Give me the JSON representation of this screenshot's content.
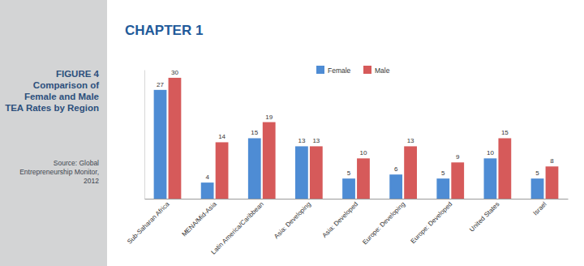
{
  "header": {
    "chapter": "CHAPTER 1",
    "figure": "FIGURE 4",
    "source": [
      "Source: Global",
      "Entrepreneurship Monitor, 2012"
    ]
  },
  "chart_data": {
    "type": "bar",
    "title": "Comparison of Female and Male TEA Rates by Region",
    "categories": [
      "Sub-Saharan Africa",
      "MENA/Mid-Asia",
      "Latin America/Caribbean",
      "Asia: Developing",
      "Asia: Developed",
      "Europe: Developing",
      "Europe: Developed",
      "United States",
      "Israel"
    ],
    "series": [
      {
        "name": "Female",
        "color": "#4e8cd4",
        "values": [
          27,
          4,
          15,
          13,
          5,
          6,
          5,
          10,
          5
        ]
      },
      {
        "name": "Male",
        "color": "#d65a5a",
        "values": [
          30,
          14,
          19,
          13,
          10,
          13,
          9,
          15,
          8
        ]
      }
    ],
    "ylim": [
      0,
      32
    ],
    "yticks": [],
    "grid": false,
    "legend": "top",
    "data_labels": true,
    "tick_labels": "x"
  }
}
